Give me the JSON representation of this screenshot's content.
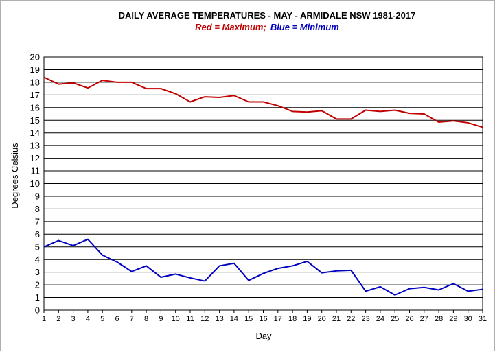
{
  "chart_data": {
    "type": "line",
    "title": "DAILY AVERAGE  TEMPERATURES - MAY - ARMIDALE NSW  1981-2017",
    "subtitle": {
      "red_word": "Red",
      "red_rest": " = Maximum;",
      "blue_word": "Blue",
      "blue_rest": " = Minimum"
    },
    "xlabel": "Day",
    "ylabel": "Degrees Celsius",
    "xlim": [
      1,
      31
    ],
    "ylim": [
      0,
      20
    ],
    "grid": true,
    "x": [
      1,
      2,
      3,
      4,
      5,
      6,
      7,
      8,
      9,
      10,
      11,
      12,
      13,
      14,
      15,
      16,
      17,
      18,
      19,
      20,
      21,
      22,
      23,
      24,
      25,
      26,
      27,
      28,
      29,
      30,
      31
    ],
    "yticks": [
      0,
      1,
      2,
      3,
      4,
      5,
      6,
      7,
      8,
      9,
      10,
      11,
      12,
      13,
      14,
      15,
      16,
      17,
      18,
      19,
      20
    ],
    "series": [
      {
        "name": "Maximum",
        "color": "#c00000",
        "values": [
          18.4,
          17.85,
          17.95,
          17.55,
          18.15,
          18.0,
          18.0,
          17.5,
          17.5,
          17.1,
          16.45,
          16.85,
          16.8,
          16.95,
          16.45,
          16.45,
          16.15,
          15.7,
          15.65,
          15.75,
          15.1,
          15.1,
          15.8,
          15.7,
          15.8,
          15.55,
          15.5,
          14.85,
          14.95,
          14.8,
          14.45
        ]
      },
      {
        "name": "Minimum",
        "color": "#0000c0",
        "values": [
          5.0,
          5.5,
          5.1,
          5.6,
          4.35,
          3.8,
          3.05,
          3.5,
          2.6,
          2.85,
          2.55,
          2.3,
          3.5,
          3.7,
          2.35,
          2.9,
          3.3,
          3.5,
          3.85,
          2.95,
          3.1,
          3.15,
          1.5,
          1.85,
          1.2,
          1.7,
          1.8,
          1.6,
          2.1,
          1.5,
          1.65
        ]
      }
    ]
  }
}
